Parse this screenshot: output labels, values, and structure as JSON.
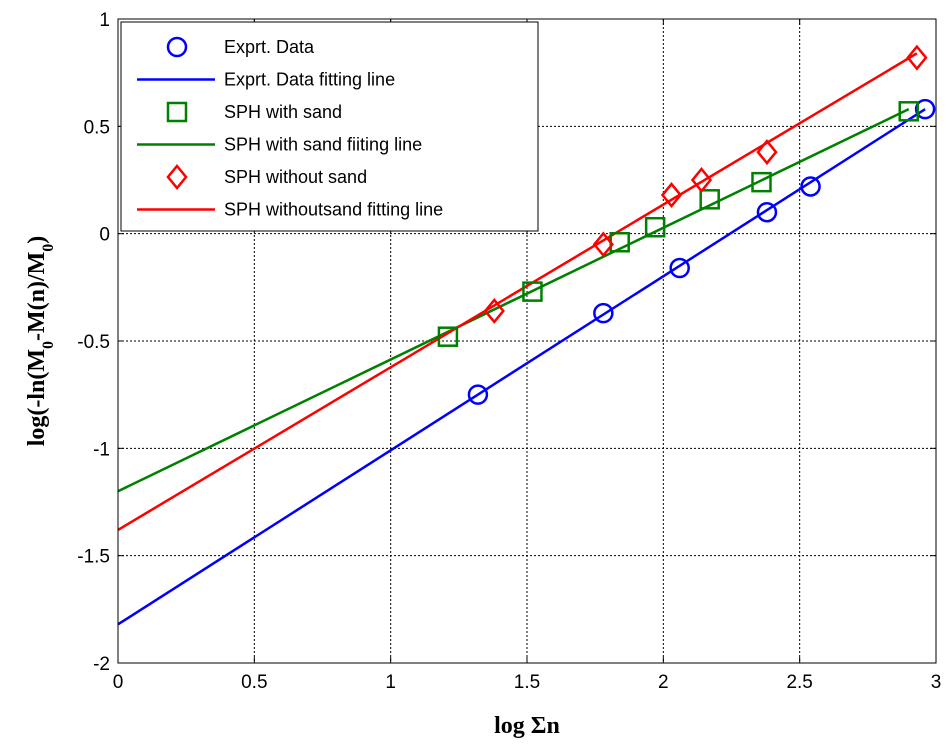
{
  "chart_data": {
    "type": "scatter",
    "xlabel": "log Σn",
    "ylabel_parts": [
      "log(-ln(M",
      "0",
      "-M(n)/M",
      "0",
      ")"
    ],
    "xlim": [
      0,
      3
    ],
    "ylim": [
      -2,
      1
    ],
    "x_ticks": [
      0,
      0.5,
      1,
      1.5,
      2,
      2.5,
      3
    ],
    "y_ticks": [
      -2,
      -1.5,
      -1,
      -0.5,
      0,
      0.5,
      1
    ],
    "x_tick_labels": [
      "0",
      "0.5",
      "1",
      "1.5",
      "2",
      "2.5",
      "3"
    ],
    "y_tick_labels": [
      "-2",
      "-1.5",
      "-1",
      "-0.5",
      "0",
      "0.5",
      "1"
    ],
    "grid": true,
    "legend_position": "top-left",
    "series": [
      {
        "name": "Exprt. Data",
        "kind": "markers",
        "marker": "circle",
        "color": "#0000ff",
        "x": [
          1.32,
          1.78,
          2.06,
          2.38,
          2.54,
          2.96
        ],
        "y": [
          -0.75,
          -0.37,
          -0.16,
          0.1,
          0.22,
          0.58
        ]
      },
      {
        "name": "Exprt. Data fitting line",
        "kind": "line",
        "color": "#0000ff",
        "x": [
          0,
          2.96
        ],
        "y": [
          -1.82,
          0.58
        ]
      },
      {
        "name": "SPH with sand",
        "kind": "markers",
        "marker": "square",
        "color": "#008000",
        "x": [
          1.21,
          1.52,
          1.84,
          1.97,
          2.17,
          2.36,
          2.9
        ],
        "y": [
          -0.48,
          -0.27,
          -0.04,
          0.03,
          0.16,
          0.24,
          0.57
        ]
      },
      {
        "name": "SPH with sand fiiting line",
        "kind": "line",
        "color": "#008000",
        "x": [
          0,
          2.9
        ],
        "y": [
          -1.2,
          0.58
        ]
      },
      {
        "name": "SPH without sand",
        "kind": "markers",
        "marker": "diamond",
        "color": "#ff0000",
        "x": [
          1.38,
          1.78,
          2.03,
          2.14,
          2.38,
          2.93
        ],
        "y": [
          -0.36,
          -0.05,
          0.18,
          0.25,
          0.38,
          0.82
        ]
      },
      {
        "name": "SPH withoutsand fitting line",
        "kind": "line",
        "color": "#ff0000",
        "x": [
          0,
          2.93
        ],
        "y": [
          -1.38,
          0.84
        ]
      }
    ]
  }
}
